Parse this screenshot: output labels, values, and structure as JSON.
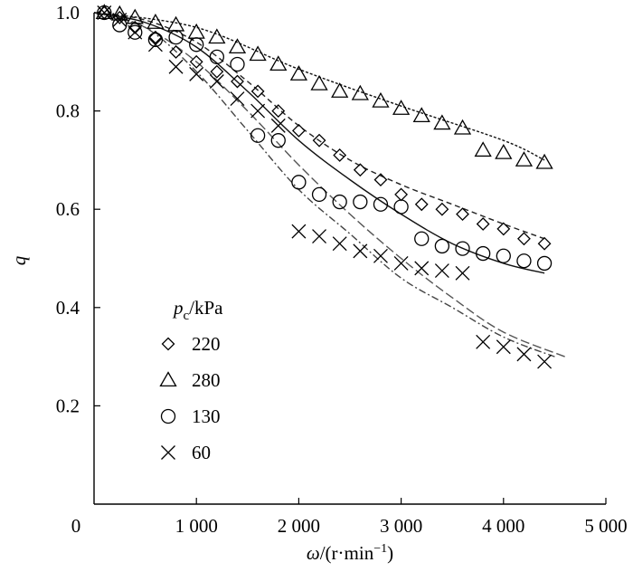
{
  "chart_data": {
    "type": "scatter",
    "xlabel_prefix": "ω",
    "xlabel_unit": "/(r·min",
    "xlabel_exp": "−1",
    "xlabel_close": ")",
    "ylabel": "q",
    "xlim": [
      0,
      5000
    ],
    "ylim": [
      0,
      1.0
    ],
    "x_ticks": [
      0,
      1000,
      2000,
      3000,
      4000,
      5000
    ],
    "x_tick_labels": [
      "0",
      "1 000",
      "2 000",
      "3 000",
      "4 000",
      "5 000"
    ],
    "y_ticks": [
      0.2,
      0.4,
      0.6,
      0.8,
      1.0
    ],
    "y_tick_labels": [
      "0.2",
      "0.4",
      "0.6",
      "0.8",
      "1.0"
    ],
    "grid": false,
    "legend": {
      "position": "lower-left",
      "title_var": "p",
      "title_sub": "c",
      "title_unit": "/kPa"
    },
    "series": [
      {
        "name": "220",
        "marker": "diamond",
        "points": [
          [
            100,
            1.0
          ],
          [
            250,
            0.99
          ],
          [
            400,
            0.97
          ],
          [
            600,
            0.95
          ],
          [
            800,
            0.92
          ],
          [
            1000,
            0.9
          ],
          [
            1200,
            0.88
          ],
          [
            1400,
            0.86
          ],
          [
            1600,
            0.84
          ],
          [
            1800,
            0.8
          ],
          [
            2000,
            0.76
          ],
          [
            2200,
            0.74
          ],
          [
            2400,
            0.71
          ],
          [
            2600,
            0.68
          ],
          [
            2800,
            0.66
          ],
          [
            3000,
            0.63
          ],
          [
            3200,
            0.61
          ],
          [
            3400,
            0.6
          ],
          [
            3600,
            0.59
          ],
          [
            3800,
            0.57
          ],
          [
            4000,
            0.56
          ],
          [
            4200,
            0.54
          ],
          [
            4400,
            0.53
          ]
        ],
        "fit": [
          [
            0,
            1.0
          ],
          [
            500,
            0.985
          ],
          [
            1000,
            0.94
          ],
          [
            1500,
            0.86
          ],
          [
            2000,
            0.77
          ],
          [
            2500,
            0.7
          ],
          [
            3000,
            0.65
          ],
          [
            3500,
            0.61
          ],
          [
            4000,
            0.57
          ],
          [
            4400,
            0.54
          ]
        ]
      },
      {
        "name": "280",
        "marker": "triangle",
        "points": [
          [
            100,
            1.0
          ],
          [
            250,
            0.997
          ],
          [
            400,
            0.99
          ],
          [
            600,
            0.98
          ],
          [
            800,
            0.975
          ],
          [
            1000,
            0.96
          ],
          [
            1200,
            0.95
          ],
          [
            1400,
            0.93
          ],
          [
            1600,
            0.915
          ],
          [
            1800,
            0.895
          ],
          [
            2000,
            0.875
          ],
          [
            2200,
            0.855
          ],
          [
            2400,
            0.84
          ],
          [
            2600,
            0.835
          ],
          [
            2800,
            0.82
          ],
          [
            3000,
            0.805
          ],
          [
            3200,
            0.79
          ],
          [
            3400,
            0.775
          ],
          [
            3600,
            0.765
          ],
          [
            3800,
            0.72
          ],
          [
            4000,
            0.715
          ],
          [
            4200,
            0.7
          ],
          [
            4400,
            0.695
          ]
        ],
        "fit": [
          [
            0,
            1.0
          ],
          [
            1000,
            0.97
          ],
          [
            2000,
            0.885
          ],
          [
            3000,
            0.81
          ],
          [
            4000,
            0.74
          ],
          [
            4400,
            0.7
          ]
        ]
      },
      {
        "name": "130",
        "marker": "circle",
        "points": [
          [
            100,
            1.0
          ],
          [
            250,
            0.975
          ],
          [
            400,
            0.96
          ],
          [
            600,
            0.945
          ],
          [
            800,
            0.95
          ],
          [
            1000,
            0.935
          ],
          [
            1200,
            0.91
          ],
          [
            1400,
            0.895
          ],
          [
            1600,
            0.75
          ],
          [
            1800,
            0.74
          ],
          [
            2000,
            0.655
          ],
          [
            2200,
            0.63
          ],
          [
            2400,
            0.615
          ],
          [
            2600,
            0.615
          ],
          [
            2800,
            0.61
          ],
          [
            3000,
            0.605
          ],
          [
            3200,
            0.54
          ],
          [
            3400,
            0.525
          ],
          [
            3600,
            0.52
          ],
          [
            3800,
            0.51
          ],
          [
            4000,
            0.505
          ],
          [
            4200,
            0.495
          ],
          [
            4400,
            0.49
          ]
        ],
        "fit": [
          [
            0,
            1.0
          ],
          [
            500,
            0.98
          ],
          [
            1000,
            0.93
          ],
          [
            1500,
            0.84
          ],
          [
            2000,
            0.74
          ],
          [
            2500,
            0.66
          ],
          [
            3000,
            0.59
          ],
          [
            3500,
            0.53
          ],
          [
            4000,
            0.49
          ],
          [
            4400,
            0.47
          ]
        ]
      },
      {
        "name": "60",
        "marker": "cross",
        "points": [
          [
            100,
            1.0
          ],
          [
            250,
            0.985
          ],
          [
            400,
            0.96
          ],
          [
            600,
            0.935
          ],
          [
            800,
            0.89
          ],
          [
            1000,
            0.875
          ],
          [
            1200,
            0.86
          ],
          [
            1400,
            0.825
          ],
          [
            1600,
            0.8
          ],
          [
            1800,
            0.77
          ],
          [
            2000,
            0.555
          ],
          [
            2200,
            0.545
          ],
          [
            2400,
            0.53
          ],
          [
            2600,
            0.515
          ],
          [
            2800,
            0.505
          ],
          [
            3000,
            0.49
          ],
          [
            3200,
            0.48
          ],
          [
            3400,
            0.475
          ],
          [
            3600,
            0.47
          ],
          [
            3800,
            0.33
          ],
          [
            4000,
            0.32
          ],
          [
            4200,
            0.305
          ],
          [
            4400,
            0.29
          ]
        ],
        "fit": [
          [
            0,
            1.0
          ],
          [
            500,
            0.97
          ],
          [
            1000,
            0.88
          ],
          [
            1500,
            0.76
          ],
          [
            2000,
            0.64
          ],
          [
            2500,
            0.55
          ],
          [
            3000,
            0.46
          ],
          [
            3500,
            0.4
          ],
          [
            4000,
            0.34
          ],
          [
            4500,
            0.3
          ]
        ],
        "fit2": [
          [
            0,
            1.0
          ],
          [
            500,
            0.97
          ],
          [
            1000,
            0.9
          ],
          [
            1500,
            0.8
          ],
          [
            2000,
            0.69
          ],
          [
            2500,
            0.59
          ],
          [
            3000,
            0.5
          ],
          [
            3500,
            0.42
          ],
          [
            4000,
            0.35
          ],
          [
            4600,
            0.3
          ]
        ]
      }
    ]
  }
}
